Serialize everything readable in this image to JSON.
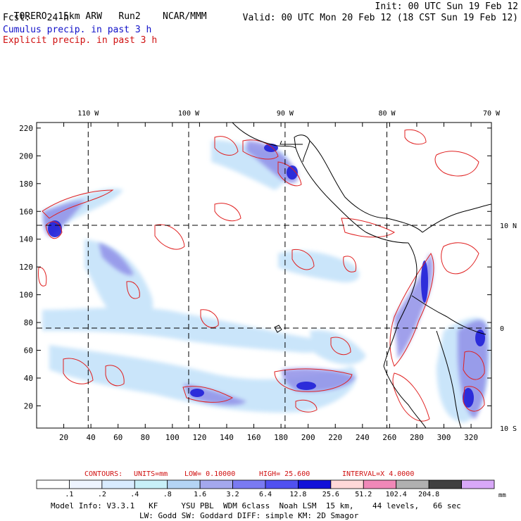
{
  "header": {
    "model": "TORERO",
    "resolution": "15km ARW",
    "run": "Run2",
    "org": "NCAR/MMM",
    "init": "Init: 00 UTC Sun 19 Feb 12",
    "fcst_label": "Fcst:",
    "fcst_value": "24 h",
    "valid": "Valid: 00 UTC Mon 20 Feb 12 (18 CST Sun 19 Feb 12)",
    "line_cumulus": "Cumulus precip. in past 3 h",
    "line_explicit": "Explicit precip. in past 3 h"
  },
  "chart_data": {
    "type": "heatmap",
    "title": "Cumulus / Explicit precip. in past 3 h",
    "x_ticks": [
      20,
      40,
      60,
      80,
      100,
      120,
      140,
      160,
      180,
      200,
      220,
      240,
      260,
      280,
      300,
      320
    ],
    "y_ticks": [
      20,
      40,
      60,
      80,
      100,
      120,
      140,
      160,
      180,
      200,
      220
    ],
    "xlim": [
      0,
      335
    ],
    "ylim": [
      4,
      224
    ],
    "lon_labels": [
      {
        "text": "110 W",
        "x": 38
      },
      {
        "text": "100 W",
        "x": 112
      },
      {
        "text": "90 W",
        "x": 183
      },
      {
        "text": "80 W",
        "x": 258
      },
      {
        "text": "70 W",
        "x": 335
      }
    ],
    "lat_labels": [
      {
        "text": "10 N",
        "y": 150
      },
      {
        "text": "0",
        "y": 76
      },
      {
        "text": "10 S",
        "y": 4
      }
    ],
    "grid_lon_x": [
      38,
      112,
      183,
      258
    ],
    "grid_lat_y": [
      150,
      76
    ],
    "contours": {
      "label": "CONTOURS:",
      "units": "UNITS=mm",
      "low": "LOW= 0.10000",
      "high": "HIGH= 25.600",
      "interval": "INTERVAL=X 4.0000"
    },
    "colorbar": {
      "levels": [
        ".1",
        ".2",
        ".4",
        ".8",
        "1.6",
        "3.2",
        "6.4",
        "12.8",
        "25.6",
        "51.2",
        "102.4",
        "204.8"
      ],
      "colors": [
        "#ffffff",
        "#eef4ff",
        "#d9ecff",
        "#c8f0f8",
        "#b4d4f4",
        "#a4a8ee",
        "#7a7af2",
        "#5050f0",
        "#1010d8",
        "#ffd8d8",
        "#f088b8",
        "#b0b0b0",
        "#404040",
        "#d8a8f8"
      ],
      "units": "mm"
    },
    "colors": {
      "explicit": "#e02020",
      "cumulus_light": "#c8e4fa",
      "cumulus_mid": "#9090e8",
      "cumulus_dark": "#2020d8",
      "coast": "#000000"
    }
  },
  "footer": {
    "line1": "Model Info: V3.3.1   KF     YSU PBL  WDM 6class  Noah LSM  15 km,    44 levels,   66 sec",
    "line2": "LW: Godd SW: Goddard DIFF: simple KM: 2D Smagor"
  }
}
